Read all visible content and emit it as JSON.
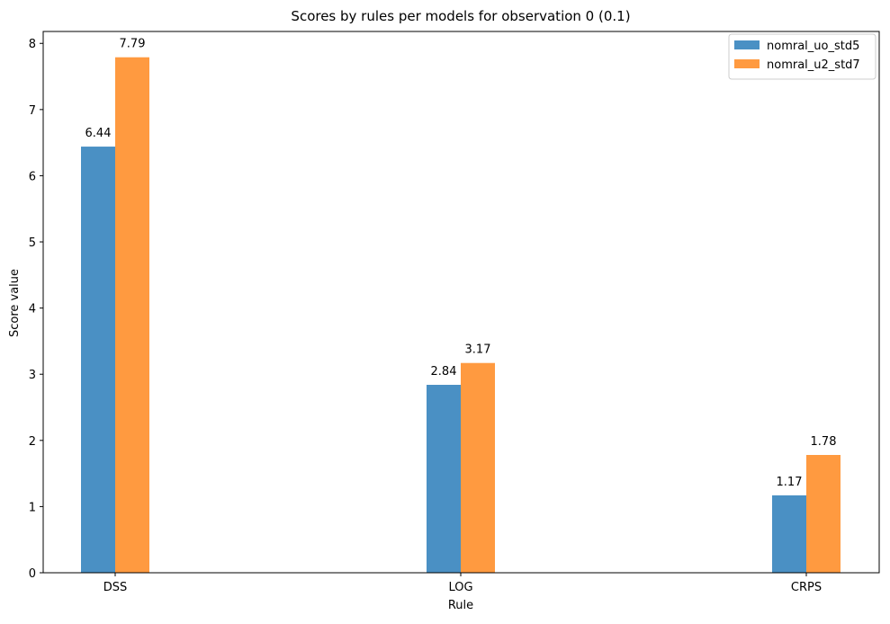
{
  "chart_data": {
    "type": "bar",
    "title": "Scores by rules per models for observation 0 (0.1)",
    "xlabel": "Rule",
    "ylabel": "Score value",
    "categories": [
      "DSS",
      "LOG",
      "CRPS"
    ],
    "series": [
      {
        "name": "nomral_uo_std5",
        "values": [
          6.44,
          2.84,
          1.17
        ],
        "labels": [
          "6.44",
          "2.84",
          "1.17"
        ],
        "color": "#4a90c4"
      },
      {
        "name": "nomral_u2_std7",
        "values": [
          7.79,
          3.17,
          1.78
        ],
        "labels": [
          "7.79",
          "3.17",
          "1.78"
        ],
        "color": "#ff9a40"
      }
    ],
    "ylim": [
      0,
      8.18
    ],
    "yticks": [
      "0",
      "1",
      "2",
      "3",
      "4",
      "5",
      "6",
      "7",
      "8"
    ],
    "grid": false,
    "legend_position": "top-right"
  }
}
